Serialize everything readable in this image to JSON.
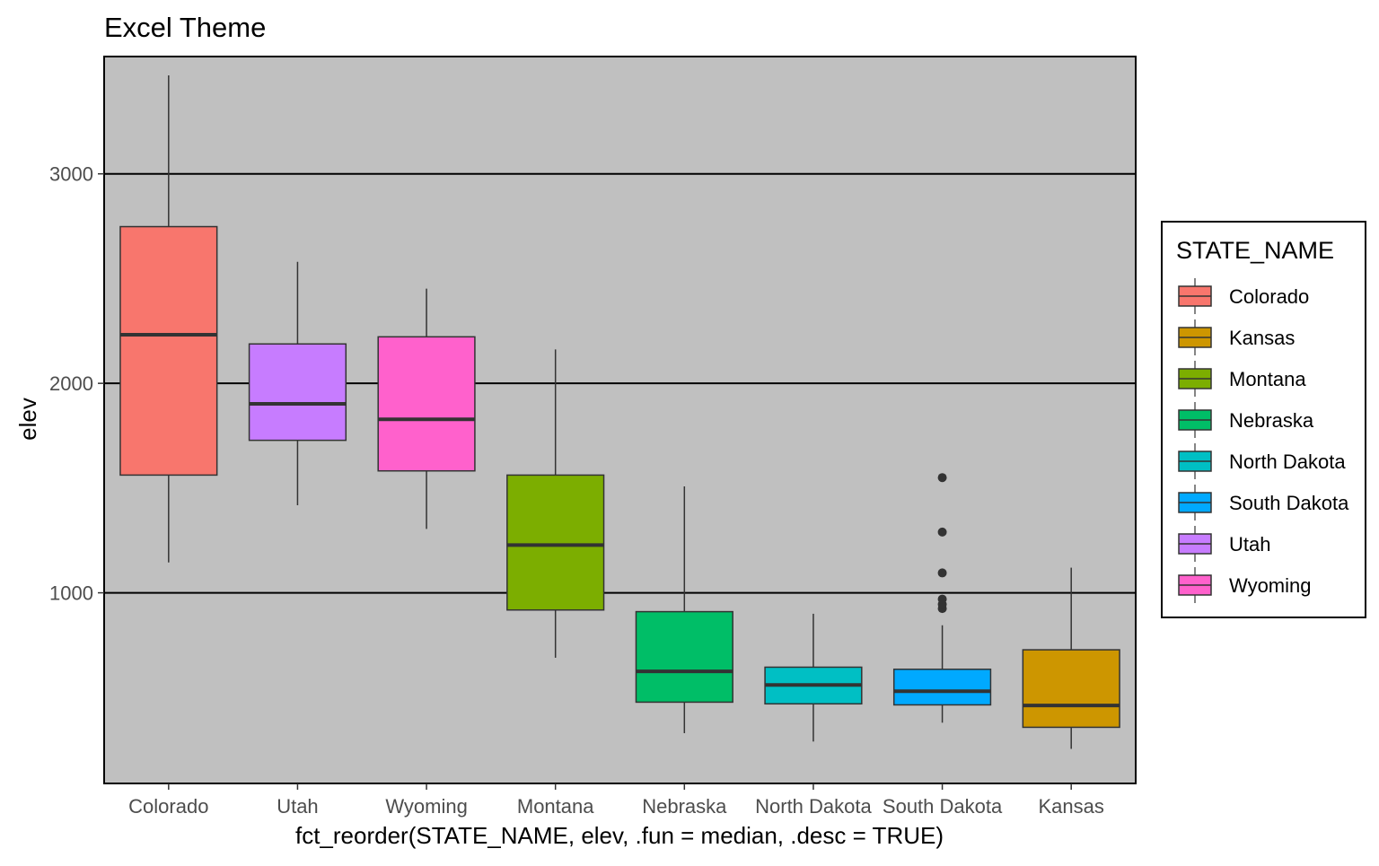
{
  "chart_data": {
    "type": "boxplot",
    "title": "Excel Theme",
    "xlabel": "fct_reorder(STATE_NAME, elev, .fun = median, .desc = TRUE)",
    "ylabel": "elev",
    "ylim": [
      90,
      3560
    ],
    "yticks": [
      1000,
      2000,
      3000
    ],
    "grid": true,
    "legend": {
      "title": "STATE_NAME",
      "placement": "right",
      "entries": [
        "Colorado",
        "Kansas",
        "Montana",
        "Nebraska",
        "North Dakota",
        "South Dakota",
        "Utah",
        "Wyoming"
      ]
    },
    "categories": [
      "Colorado",
      "Utah",
      "Wyoming",
      "Montana",
      "Nebraska",
      "North Dakota",
      "South Dakota",
      "Kansas"
    ],
    "boxes": [
      {
        "category": "Colorado",
        "min": 1145,
        "q1": 1562,
        "median": 2232,
        "q3": 2748,
        "max": 3470,
        "outliers": []
      },
      {
        "category": "Utah",
        "min": 1418,
        "q1": 1728,
        "median": 1902,
        "q3": 2188,
        "max": 2580,
        "outliers": []
      },
      {
        "category": "Wyoming",
        "min": 1305,
        "q1": 1582,
        "median": 1828,
        "q3": 2222,
        "max": 2452,
        "outliers": []
      },
      {
        "category": "Montana",
        "min": 690,
        "q1": 918,
        "median": 1228,
        "q3": 1562,
        "max": 2162,
        "outliers": []
      },
      {
        "category": "Nebraska",
        "min": 330,
        "q1": 478,
        "median": 625,
        "q3": 910,
        "max": 1508,
        "outliers": []
      },
      {
        "category": "North Dakota",
        "min": 290,
        "q1": 470,
        "median": 560,
        "q3": 645,
        "max": 900,
        "outliers": []
      },
      {
        "category": "South Dakota",
        "min": 380,
        "q1": 465,
        "median": 530,
        "q3": 635,
        "max": 845,
        "outliers": [
          925,
          945,
          970,
          1095,
          1290,
          1550
        ]
      },
      {
        "category": "Kansas",
        "min": 255,
        "q1": 358,
        "median": 462,
        "q3": 728,
        "max": 1120,
        "outliers": []
      }
    ],
    "colors": {
      "Colorado": "#F8766D",
      "Kansas": "#CD9600",
      "Montana": "#7CAE00",
      "Nebraska": "#00BE67",
      "North Dakota": "#00BFC4",
      "South Dakota": "#00A9FF",
      "Utah": "#C77CFF",
      "Wyoming": "#FF61CC"
    },
    "panel_background": "#C0C0C0"
  }
}
